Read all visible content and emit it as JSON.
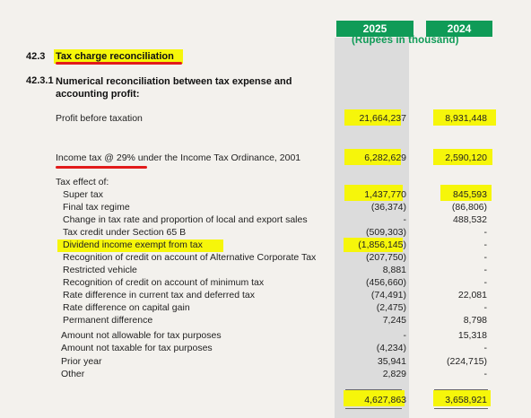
{
  "header": {
    "year_current": "2025",
    "year_prior": "2024",
    "unit": "(Rupees in thousand)"
  },
  "section": {
    "number": "42.3",
    "title": "Tax charge reconciliation"
  },
  "subsection": {
    "number": "42.3.1",
    "title": "Numerical reconciliation between tax expense and accounting profit:"
  },
  "rows": [
    {
      "label": "Profit before taxation",
      "v2025": "21,664,237",
      "v2024": "8,931,448"
    },
    {
      "label": "Income tax @ 29% under the Income Tax Ordinance, 2001",
      "v2025": "6,282,629",
      "v2024": "2,590,120"
    },
    {
      "label": "Tax effect of:",
      "v2025": "",
      "v2024": ""
    },
    {
      "label": "Super tax",
      "v2025": "1,437,770",
      "v2024": "845,593"
    },
    {
      "label": "Final tax regime",
      "v2025": "(36,374)",
      "v2024": "(86,806)"
    },
    {
      "label": "Change in tax rate and proportion of local and export sales",
      "v2025": "-",
      "v2024": "488,532"
    },
    {
      "label": "Tax credit under Section 65 B",
      "v2025": "(509,303)",
      "v2024": "-"
    },
    {
      "label": "Dividend income exempt from tax",
      "v2025": "(1,856,145)",
      "v2024": "-"
    },
    {
      "label": "Recognition of credit on account of Alternative Corporate Tax",
      "v2025": "(207,750)",
      "v2024": "-"
    },
    {
      "label": "Restricted vehicle",
      "v2025": "8,881",
      "v2024": "-"
    },
    {
      "label": "Recognition of credit on account of minimum tax",
      "v2025": "(456,660)",
      "v2024": "-"
    },
    {
      "label": "Rate difference in current tax and deferred tax",
      "v2025": "(74,491)",
      "v2024": "22,081"
    },
    {
      "label": "Rate difference on capital gain",
      "v2025": "(2,475)",
      "v2024": "-"
    },
    {
      "label": "Permanent difference",
      "v2025": "7,245",
      "v2024": "8,798"
    },
    {
      "label": "Amount not allowable for tax purposes",
      "v2025": "-",
      "v2024": "15,318"
    },
    {
      "label": "Amount not taxable for tax purposes",
      "v2025": "(4,234)",
      "v2024": "-"
    },
    {
      "label": "Prior year",
      "v2025": "35,941",
      "v2024": "(224,715)"
    },
    {
      "label": "Other",
      "v2025": "2,829",
      "v2024": "-"
    },
    {
      "label": "",
      "v2025": "4,627,863",
      "v2024": "3,658,921"
    }
  ],
  "colors": {
    "accent": "#0f9b57",
    "highlight": "#f6f60a",
    "underline": "#e21b1b",
    "column_band": "#dcdcdc",
    "background": "#f3f1ed"
  }
}
